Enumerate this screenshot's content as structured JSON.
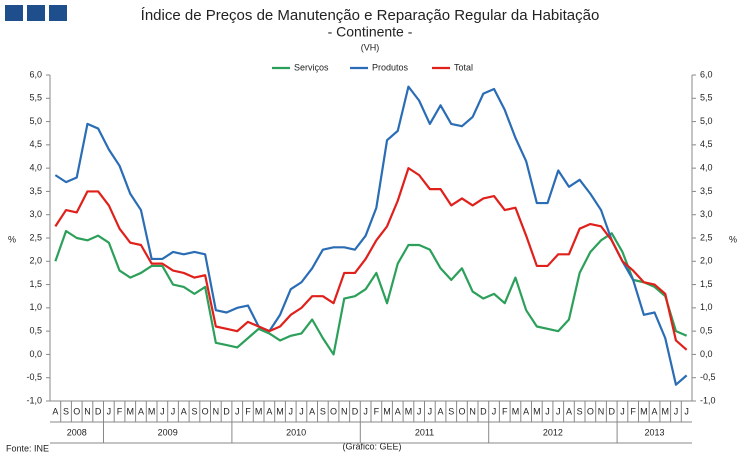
{
  "chart_data": {
    "type": "line",
    "title": "Índice de Preços de Manutenção e Reparação Regular da Habitação",
    "subtitle": "- Continente -",
    "unit_note": "(VH)",
    "y_label": "%",
    "y2_label": "%",
    "source": "Fonte: INE",
    "credit": "(Gráfico: GEE)",
    "categories": [
      "A",
      "S",
      "O",
      "N",
      "D",
      "J",
      "F",
      "M",
      "A",
      "M",
      "J",
      "J",
      "A",
      "S",
      "O",
      "N",
      "D",
      "J",
      "F",
      "M",
      "A",
      "M",
      "J",
      "J",
      "A",
      "S",
      "O",
      "N",
      "D",
      "J",
      "F",
      "M",
      "A",
      "M",
      "J",
      "J",
      "A",
      "S",
      "O",
      "N",
      "D",
      "J",
      "F",
      "M",
      "A",
      "M",
      "J",
      "J",
      "A",
      "S",
      "O",
      "N",
      "D",
      "J",
      "F",
      "M",
      "A",
      "M",
      "J",
      "J"
    ],
    "years": [
      "2008",
      "2008",
      "2008",
      "2008",
      "2008",
      "2009",
      "2009",
      "2009",
      "2009",
      "2009",
      "2009",
      "2009",
      "2009",
      "2009",
      "2009",
      "2009",
      "2009",
      "2010",
      "2010",
      "2010",
      "2010",
      "2010",
      "2010",
      "2010",
      "2010",
      "2010",
      "2010",
      "2010",
      "2010",
      "2011",
      "2011",
      "2011",
      "2011",
      "2011",
      "2011",
      "2011",
      "2011",
      "2011",
      "2011",
      "2011",
      "2011",
      "2012",
      "2012",
      "2012",
      "2012",
      "2012",
      "2012",
      "2012",
      "2012",
      "2012",
      "2012",
      "2012",
      "2012",
      "2013",
      "2013",
      "2013",
      "2013",
      "2013",
      "2013",
      "2013"
    ],
    "series": [
      {
        "name": "Serviços",
        "color": "#2ca05a",
        "values": [
          2.0,
          2.65,
          2.5,
          2.45,
          2.55,
          2.4,
          1.8,
          1.65,
          1.75,
          1.9,
          1.9,
          1.5,
          1.45,
          1.3,
          1.45,
          0.25,
          0.2,
          0.15,
          0.35,
          0.55,
          0.45,
          0.3,
          0.4,
          0.45,
          0.75,
          0.35,
          0.0,
          1.2,
          1.25,
          1.4,
          1.75,
          1.1,
          1.95,
          2.35,
          2.35,
          2.25,
          1.85,
          1.6,
          1.85,
          1.35,
          1.2,
          1.3,
          1.1,
          1.65,
          0.95,
          0.6,
          0.55,
          0.5,
          0.75,
          1.75,
          2.2,
          2.45,
          2.6,
          2.2,
          1.6,
          1.55,
          1.45,
          1.25,
          0.5,
          0.4
        ]
      },
      {
        "name": "Produtos",
        "color": "#2a6db5",
        "values": [
          3.85,
          3.7,
          3.8,
          4.95,
          4.85,
          4.4,
          4.05,
          3.45,
          3.1,
          2.05,
          2.05,
          2.2,
          2.15,
          2.2,
          2.15,
          0.95,
          0.9,
          1.0,
          1.05,
          0.6,
          0.5,
          0.85,
          1.4,
          1.55,
          1.85,
          2.25,
          2.3,
          2.3,
          2.25,
          2.55,
          3.15,
          4.6,
          4.8,
          5.75,
          5.45,
          4.95,
          5.35,
          4.95,
          4.9,
          5.1,
          5.6,
          5.7,
          5.25,
          4.65,
          4.15,
          3.25,
          3.25,
          3.95,
          3.6,
          3.75,
          3.45,
          3.1,
          2.45,
          2.0,
          1.6,
          0.85,
          0.9,
          0.35,
          -0.65,
          -0.45
        ]
      },
      {
        "name": "Total",
        "color": "#e0201b",
        "values": [
          2.75,
          3.1,
          3.05,
          3.5,
          3.5,
          3.2,
          2.7,
          2.4,
          2.35,
          1.95,
          1.95,
          1.8,
          1.75,
          1.65,
          1.7,
          0.6,
          0.55,
          0.5,
          0.7,
          0.6,
          0.5,
          0.6,
          0.85,
          1.0,
          1.25,
          1.25,
          1.1,
          1.75,
          1.75,
          2.05,
          2.45,
          2.75,
          3.3,
          4.0,
          3.85,
          3.55,
          3.55,
          3.2,
          3.35,
          3.2,
          3.35,
          3.4,
          3.1,
          3.15,
          2.55,
          1.9,
          1.9,
          2.15,
          2.15,
          2.7,
          2.8,
          2.75,
          2.45,
          2.0,
          1.8,
          1.55,
          1.5,
          1.3,
          0.3,
          0.1
        ]
      }
    ],
    "ylim": [
      -1,
      6
    ],
    "yticks": [
      {
        "value": -1,
        "label": "-1,0"
      },
      {
        "value": -0.5,
        "label": "-0,5"
      },
      {
        "value": 0,
        "label": "0,0"
      },
      {
        "value": 0.5,
        "label": "0,5"
      },
      {
        "value": 1,
        "label": "1,0"
      },
      {
        "value": 1.5,
        "label": "1,5"
      },
      {
        "value": 2,
        "label": "2,0"
      },
      {
        "value": 2.5,
        "label": "2,5"
      },
      {
        "value": 3,
        "label": "3,0"
      },
      {
        "value": 3.5,
        "label": "3,5"
      },
      {
        "value": 4,
        "label": "4,0"
      },
      {
        "value": 4.5,
        "label": "4,5"
      },
      {
        "value": 5,
        "label": "5,0"
      },
      {
        "value": 5.5,
        "label": "5,5"
      },
      {
        "value": 6,
        "label": "6,0"
      }
    ],
    "y2lim": [
      -1,
      6
    ],
    "y2ticks": [
      {
        "value": -1,
        "label": "-1,0"
      },
      {
        "value": -0.5,
        "label": "-0,5"
      },
      {
        "value": 0,
        "label": "0,0"
      },
      {
        "value": 0.5,
        "label": "0,5"
      },
      {
        "value": 1,
        "label": "1,0"
      },
      {
        "value": 1.5,
        "label": "1,5"
      },
      {
        "value": 2,
        "label": "2,0"
      },
      {
        "value": 2.5,
        "label": "2,5"
      },
      {
        "value": 3,
        "label": "3,0"
      },
      {
        "value": 3.5,
        "label": "3,5"
      },
      {
        "value": 4,
        "label": "4,0"
      },
      {
        "value": 4.5,
        "label": "4,5"
      },
      {
        "value": 5,
        "label": "5,0"
      },
      {
        "value": 5.5,
        "label": "5,5"
      },
      {
        "value": 6,
        "label": "6,0"
      }
    ],
    "grid": false
  }
}
